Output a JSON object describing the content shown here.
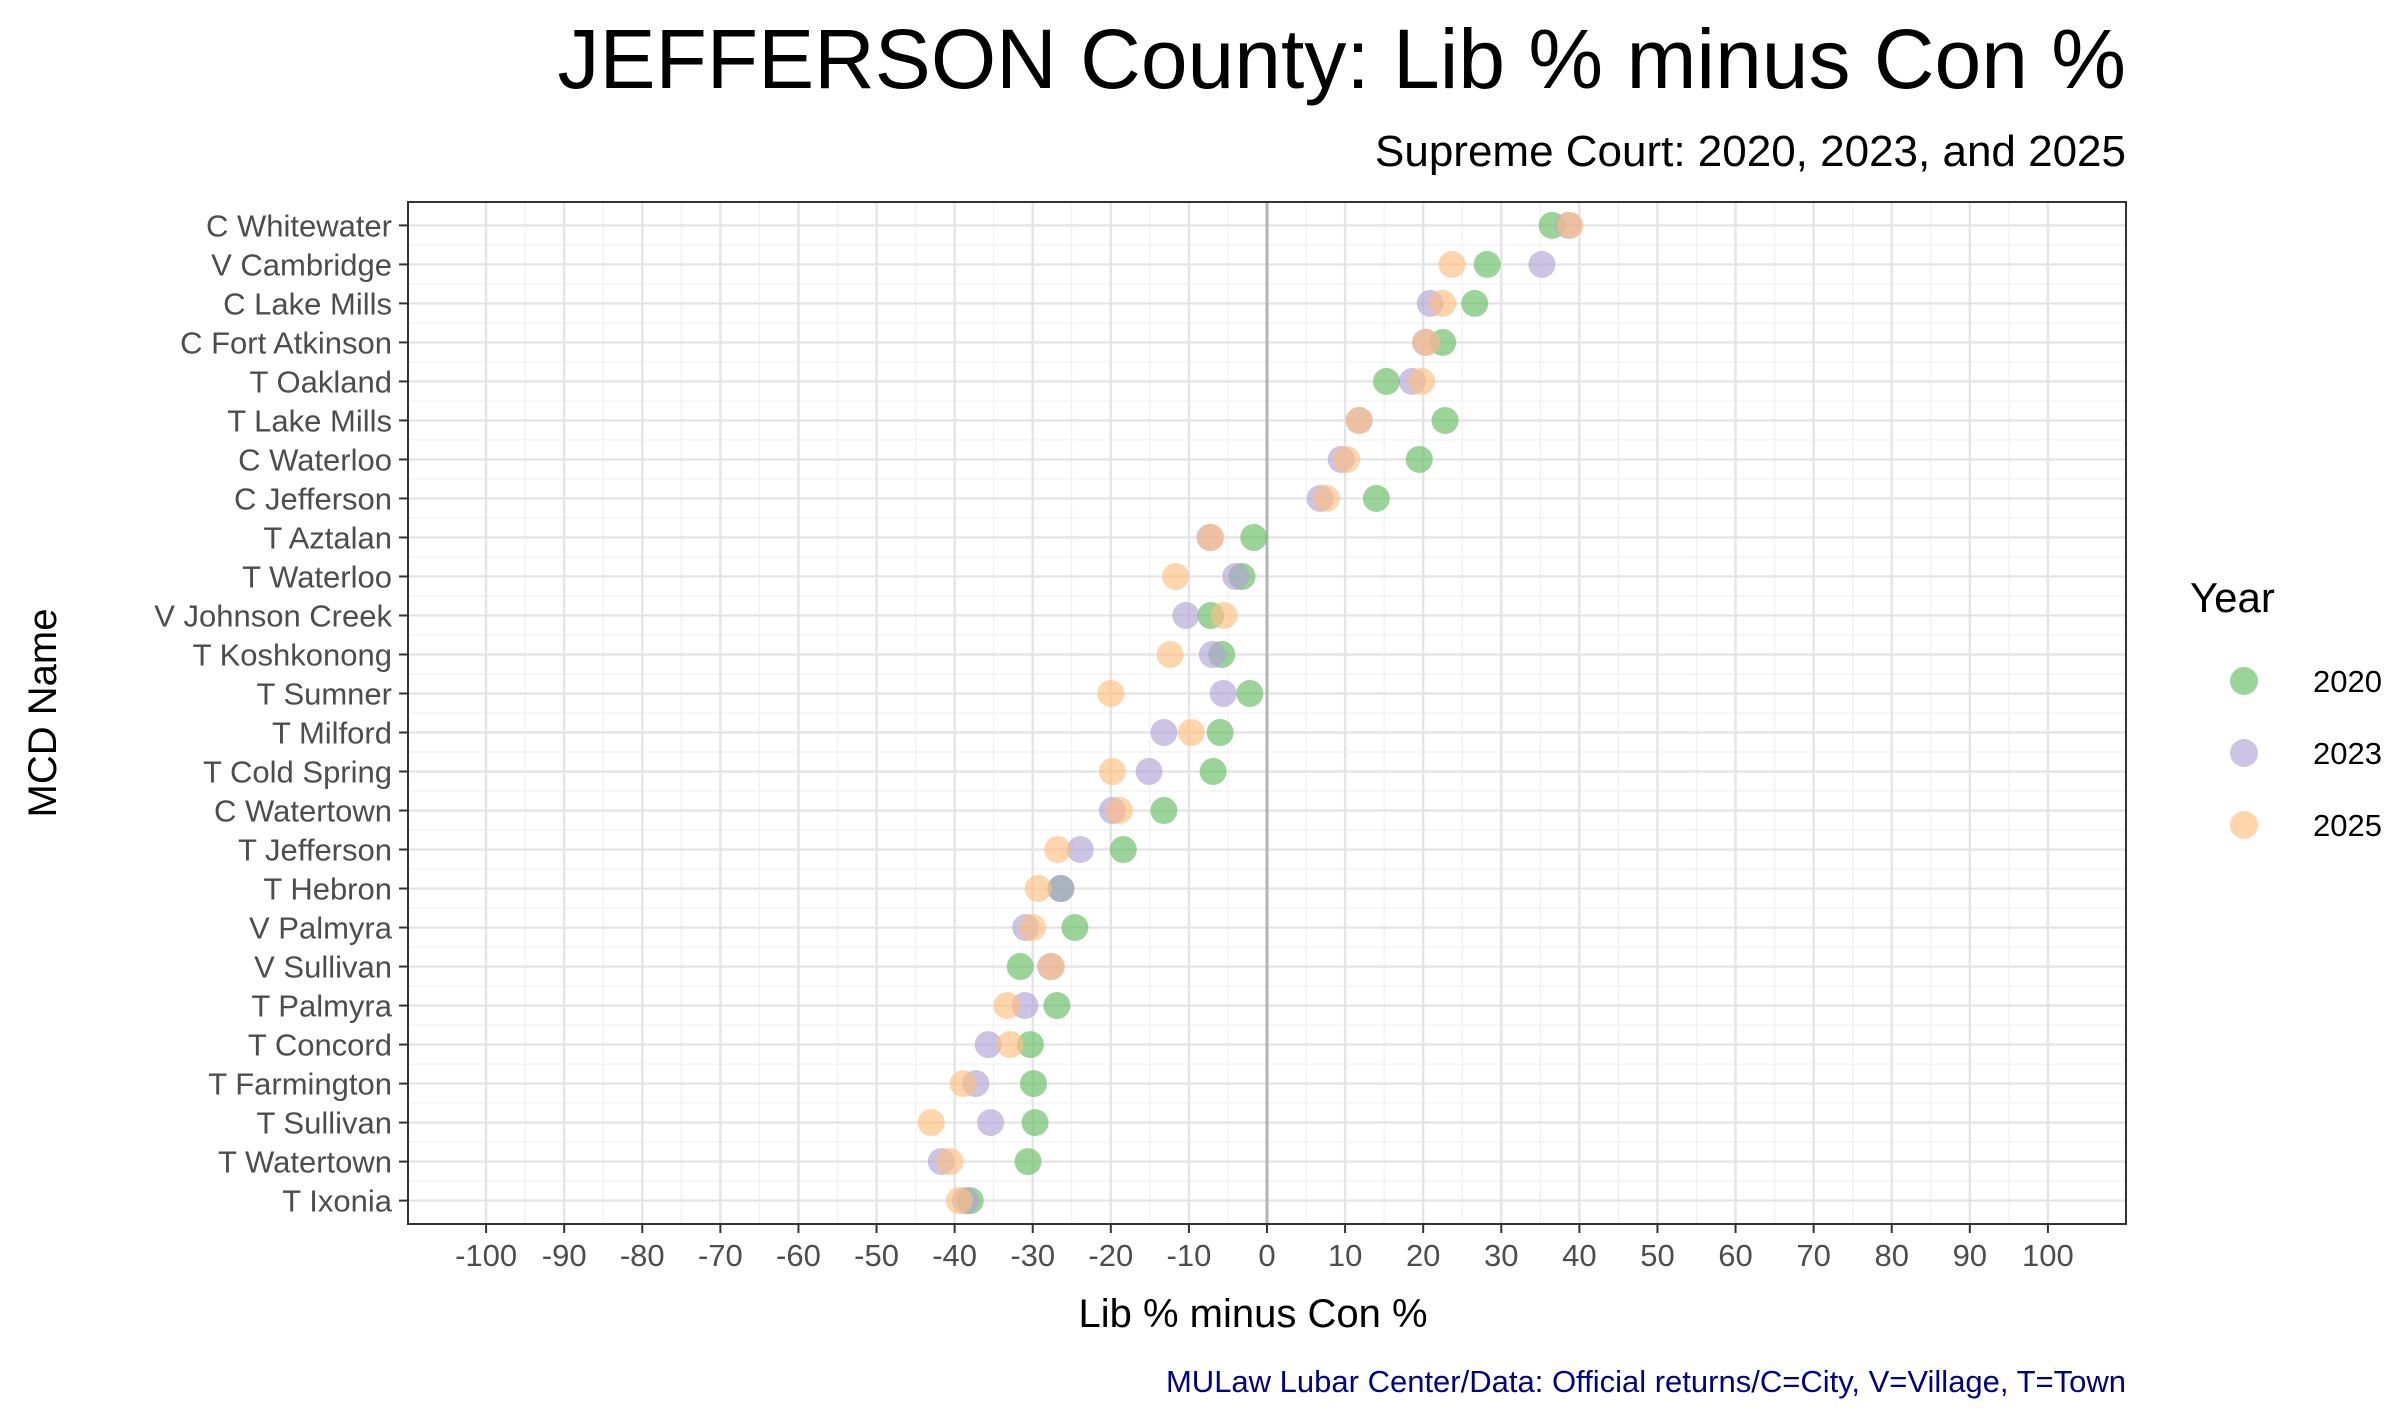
{
  "chart_data": {
    "type": "scatter",
    "title": "JEFFERSON County: Lib % minus Con %",
    "subtitle": "Supreme Court: 2020, 2023, and 2025",
    "xlabel": "Lib % minus Con %",
    "ylabel": "MCD Name",
    "caption": "MULaw Lubar Center/Data: Official returns/C=City, V=Village, T=Town",
    "xlim": [
      -110,
      110
    ],
    "xticks": [
      -100,
      -90,
      -80,
      -70,
      -60,
      -50,
      -40,
      -30,
      -20,
      -10,
      0,
      10,
      20,
      30,
      40,
      50,
      60,
      70,
      80,
      90,
      100
    ],
    "grid": true,
    "zero_line": true,
    "legend": {
      "title": "Year",
      "position": "right"
    },
    "categories": [
      "C Whitewater",
      "V Cambridge",
      "C Lake Mills",
      "C Fort Atkinson",
      "T Oakland",
      "T Lake Mills",
      "C Waterloo",
      "C Jefferson",
      "T Aztalan",
      "T Waterloo",
      "V Johnson Creek",
      "T Koshkonong",
      "T Sumner",
      "T Milford",
      "T Cold Spring",
      "C Watertown",
      "T Jefferson",
      "T Hebron",
      "V Palmyra",
      "V Sullivan",
      "T Palmyra",
      "T Concord",
      "T Farmington",
      "T Sullivan",
      "T Watertown",
      "T Ixonia"
    ],
    "series": [
      {
        "name": "2020",
        "color": "#66BD63",
        "values": [
          36.5,
          28.2,
          26.6,
          22.5,
          15.3,
          22.8,
          19.5,
          14.0,
          -1.7,
          -3.2,
          -7.2,
          -5.8,
          -2.2,
          -6.0,
          -6.9,
          -13.2,
          -18.4,
          -26.4,
          -24.6,
          -31.6,
          -26.9,
          -30.3,
          -29.9,
          -29.7,
          -30.6,
          -38.0
        ]
      },
      {
        "name": "2023",
        "color": "#B2A3D6",
        "values": [
          38.6,
          35.2,
          20.9,
          20.3,
          18.6,
          11.8,
          9.5,
          6.8,
          -7.3,
          -4.0,
          -10.4,
          -7.0,
          -5.6,
          -13.2,
          -15.1,
          -19.8,
          -23.9,
          -26.4,
          -30.9,
          -27.7,
          -31.0,
          -35.7,
          -37.3,
          -35.4,
          -41.7,
          -38.6
        ]
      },
      {
        "name": "2025",
        "color": "#FFBF80",
        "values": [
          38.8,
          23.7,
          22.5,
          20.4,
          19.8,
          11.8,
          10.2,
          7.6,
          -7.2,
          -11.7,
          -5.5,
          -12.4,
          -20.0,
          -9.7,
          -19.8,
          -18.9,
          -26.8,
          -29.3,
          -30.0,
          -27.6,
          -33.3,
          -32.9,
          -38.9,
          -43.0,
          -40.6,
          -39.4
        ]
      }
    ]
  }
}
